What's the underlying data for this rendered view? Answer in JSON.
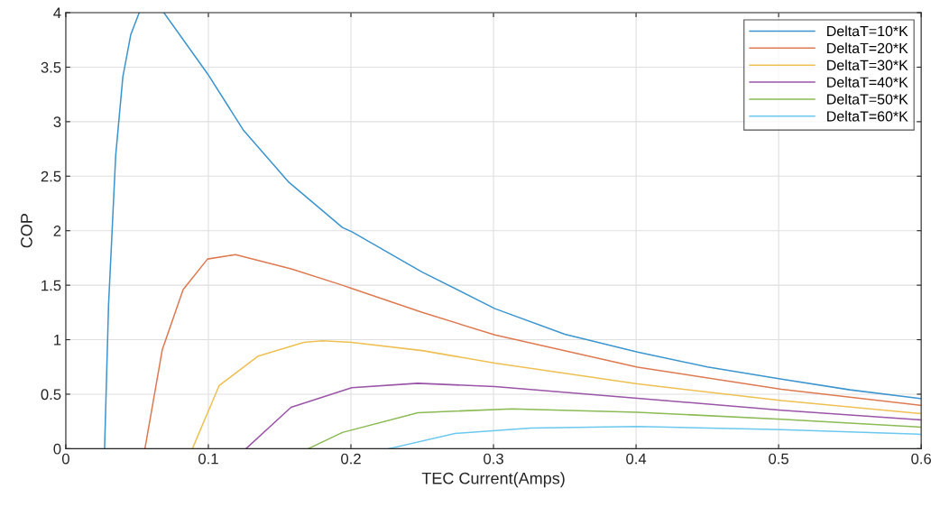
{
  "chart_data": {
    "type": "line",
    "xlabel": "TEC Current(Amps)",
    "ylabel": "COP",
    "xlim": [
      0,
      0.6
    ],
    "ylim": [
      0,
      4
    ],
    "xticks": [
      0,
      0.1,
      0.2,
      0.3,
      0.4,
      0.5,
      0.6
    ],
    "yticks": [
      0,
      0.5,
      1,
      1.5,
      2,
      2.5,
      3,
      3.5,
      4
    ],
    "grid": true,
    "legend": "top right",
    "marker": "none",
    "line_style": "solid",
    "series": [
      {
        "name": "DeltaT=10*K",
        "color": "#3d95cf",
        "x": [
          0.0272,
          0.03,
          0.035,
          0.04,
          0.0456,
          0.0515,
          0.06,
          0.0688,
          0.0994,
          0.1247,
          0.156,
          0.194,
          0.2006,
          0.25,
          0.301,
          0.35,
          0.401,
          0.45,
          0.502,
          0.55,
          0.6
        ],
        "values": [
          0,
          1.32,
          2.69,
          3.41,
          3.8,
          4,
          null,
          4,
          3.44,
          2.92,
          2.45,
          2.03,
          1.99,
          1.62,
          1.285,
          1.05,
          0.886,
          0.75,
          0.638,
          0.54,
          0.459
        ]
      },
      {
        "name": "DeltaT=20*K",
        "color": "#de7a52",
        "x": [
          0.0555,
          0.0677,
          0.0823,
          0.0994,
          0.119,
          0.158,
          0.194,
          0.2006,
          0.25,
          0.301,
          0.401,
          0.502,
          0.6
        ],
        "values": [
          0,
          0.91,
          1.46,
          1.74,
          1.78,
          1.65,
          1.5,
          1.47,
          1.25,
          1.044,
          0.748,
          0.545,
          0.397
        ]
      },
      {
        "name": "DeltaT=30*K",
        "color": "#eec054",
        "x": [
          0.0888,
          0.1076,
          0.135,
          0.167,
          0.18,
          0.2006,
          0.25,
          0.301,
          0.401,
          0.502,
          0.6
        ],
        "values": [
          0,
          0.58,
          0.85,
          0.975,
          0.99,
          0.975,
          0.9,
          0.785,
          0.595,
          0.441,
          0.322
        ]
      },
      {
        "name": "DeltaT=40*K",
        "color": "#9a55a8",
        "x": [
          0.1264,
          0.158,
          0.2006,
          0.2468,
          0.301,
          0.401,
          0.502,
          0.6
        ],
        "values": [
          0,
          0.38,
          0.56,
          0.6,
          0.57,
          0.463,
          0.352,
          0.264
        ]
      },
      {
        "name": "DeltaT=50*K",
        "color": "#8cba55",
        "x": [
          0.17,
          0.194,
          0.247,
          0.313,
          0.401,
          0.502,
          0.6
        ],
        "values": [
          0,
          0.149,
          0.33,
          0.366,
          0.335,
          0.27,
          0.198
        ]
      },
      {
        "name": "DeltaT=60*K",
        "color": "#6cc8ee",
        "x": [
          0.2265,
          0.273,
          0.326,
          0.401,
          0.502,
          0.6
        ],
        "values": [
          0,
          0.14,
          0.19,
          0.204,
          0.174,
          0.132
        ]
      }
    ]
  }
}
